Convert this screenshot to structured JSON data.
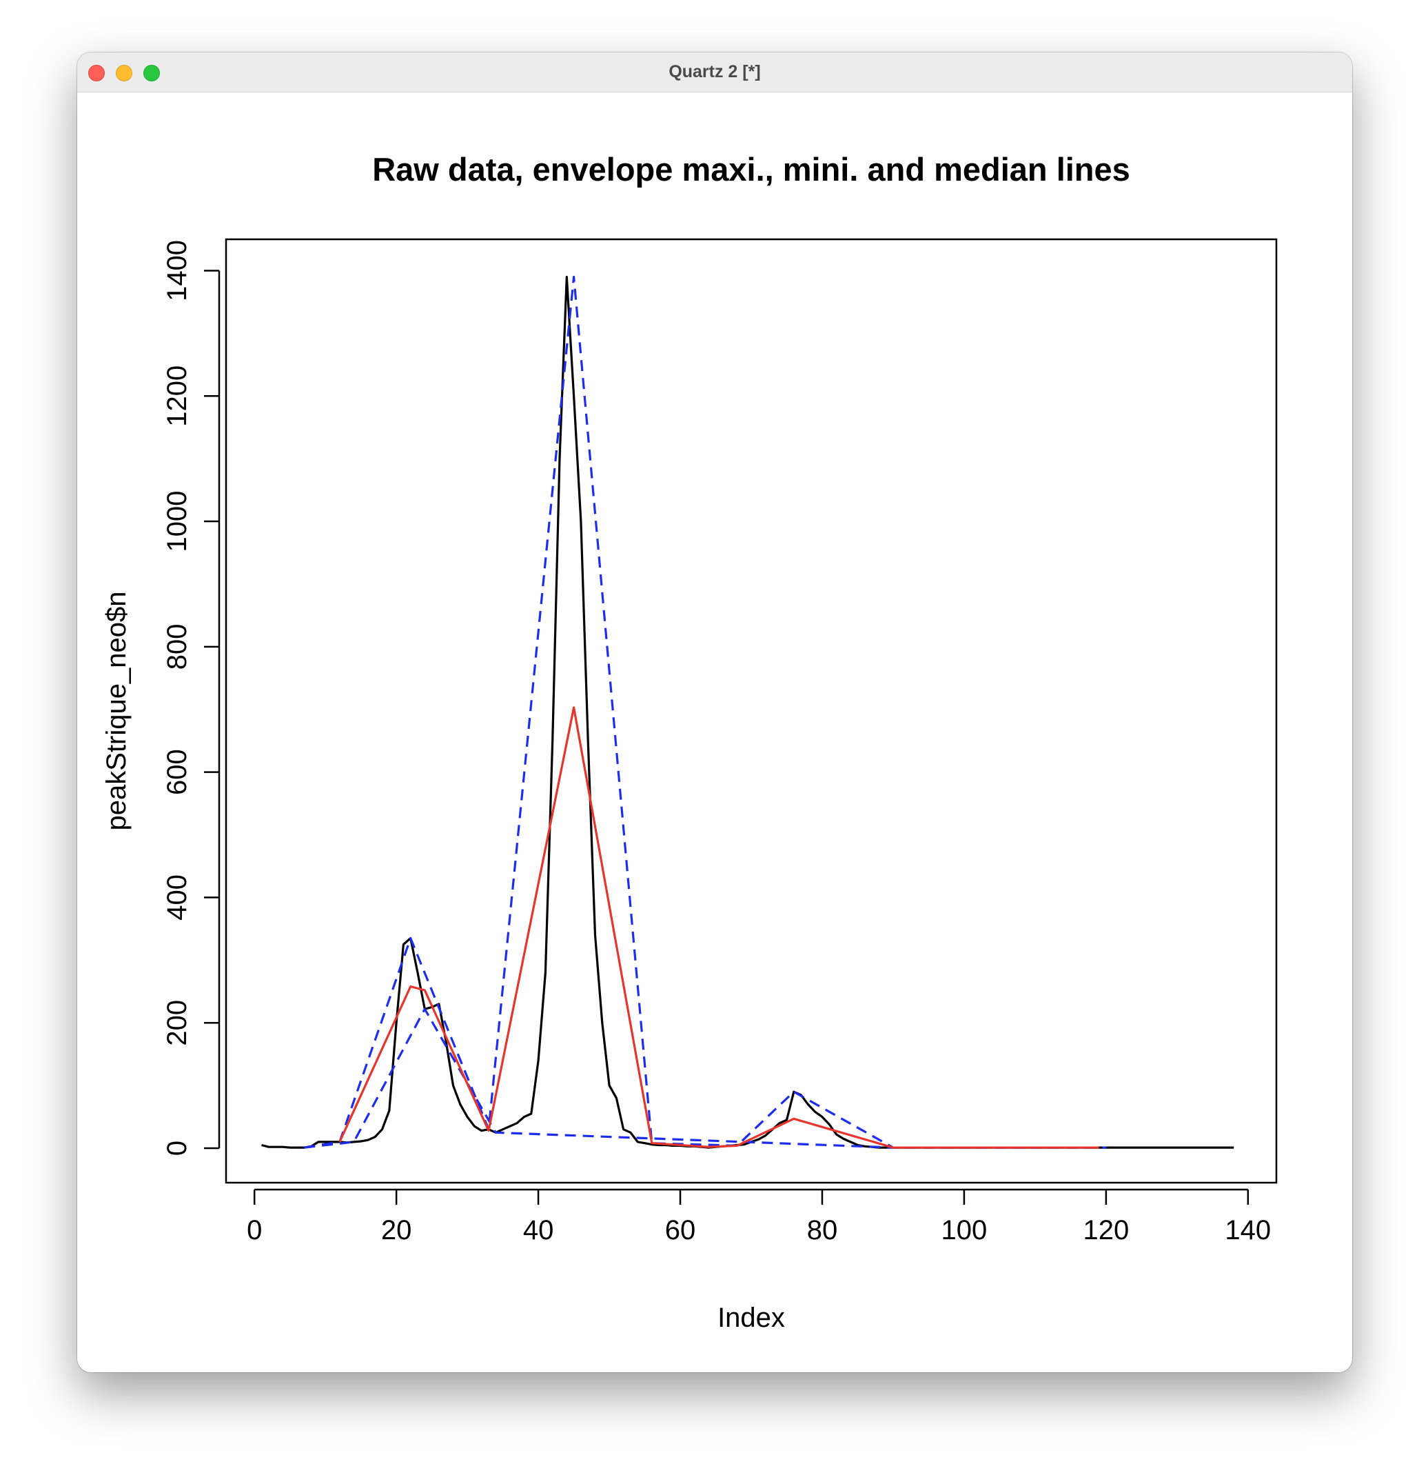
{
  "window": {
    "title": "Quartz 2 [*]",
    "controls": [
      "close",
      "minimize",
      "zoom"
    ]
  },
  "chart_data": {
    "type": "line",
    "title": "Raw data, envelope maxi., mini. and median lines",
    "xlabel": "Index",
    "ylabel": "peakStrique_neo$n",
    "xlim": [
      -4,
      144
    ],
    "ylim": [
      -55,
      1450
    ],
    "xticks": [
      0,
      20,
      40,
      60,
      80,
      100,
      120,
      140
    ],
    "yticks": [
      0,
      200,
      400,
      600,
      800,
      1000,
      1200,
      1400
    ],
    "grid": false,
    "legend": "none",
    "series": [
      {
        "style": "solid",
        "color": "#000000",
        "x": [
          1,
          2,
          3,
          4,
          5,
          6,
          7,
          8,
          9,
          10,
          11,
          12,
          13,
          14,
          15,
          16,
          17,
          18,
          19,
          20,
          21,
          22,
          23,
          24,
          25,
          26,
          27,
          28,
          29,
          30,
          31,
          32,
          33,
          34,
          35,
          36,
          37,
          38,
          39,
          40,
          41,
          42,
          43,
          44,
          45,
          46,
          47,
          48,
          49,
          50,
          51,
          52,
          53,
          54,
          55,
          56,
          57,
          58,
          59,
          60,
          61,
          62,
          63,
          64,
          65,
          66,
          67,
          68,
          69,
          70,
          71,
          72,
          73,
          74,
          75,
          76,
          77,
          78,
          79,
          80,
          81,
          82,
          83,
          84,
          85,
          86,
          87,
          88,
          89,
          90,
          91,
          92,
          93,
          94,
          95,
          96,
          97,
          98,
          99,
          100,
          101,
          102,
          103,
          104,
          105,
          106,
          107,
          108,
          109,
          110,
          111,
          112,
          113,
          114,
          115,
          116,
          117,
          118,
          119,
          120,
          121,
          122,
          123,
          124,
          125,
          126,
          127,
          128,
          129,
          130,
          131,
          132,
          133,
          134,
          135,
          136,
          137,
          138
        ],
        "y": [
          5,
          2,
          2,
          2,
          1,
          1,
          1,
          3,
          10,
          10,
          10,
          10,
          9,
          10,
          11,
          13,
          18,
          30,
          60,
          200,
          325,
          335,
          280,
          222,
          225,
          230,
          170,
          100,
          70,
          50,
          35,
          28,
          30,
          25,
          30,
          35,
          40,
          50,
          55,
          140,
          280,
          650,
          1100,
          1390,
          1200,
          1000,
          650,
          340,
          200,
          100,
          80,
          30,
          25,
          10,
          8,
          6,
          5,
          5,
          4,
          4,
          3,
          3,
          2,
          1,
          2,
          3,
          4,
          5,
          6,
          10,
          14,
          20,
          30,
          40,
          45,
          90,
          85,
          70,
          58,
          50,
          38,
          22,
          15,
          10,
          5,
          3,
          2,
          1,
          1,
          1,
          1,
          1,
          1,
          1,
          1,
          1,
          1,
          1,
          1,
          1,
          1,
          1,
          1,
          1,
          1,
          1,
          1,
          1,
          1,
          1,
          1,
          1,
          1,
          1,
          1,
          1,
          1,
          1,
          1,
          1,
          1,
          1,
          1,
          1,
          1,
          1,
          1,
          1,
          1,
          1,
          1,
          1,
          1,
          1,
          1,
          1,
          1,
          1
        ]
      },
      {
        "style": "dashed",
        "color": "#1c2cf0",
        "x": [
          7,
          12,
          22,
          33,
          45,
          56,
          68,
          76,
          90,
          104,
          120
        ],
        "y": [
          1,
          10,
          335,
          30,
          1390,
          8,
          4,
          90,
          1,
          1,
          1
        ]
      },
      {
        "style": "dashed",
        "color": "#1c2cf0",
        "x": [
          7,
          14,
          24,
          34,
          90,
          119
        ],
        "y": [
          1,
          10,
          222,
          25,
          1,
          1
        ]
      },
      {
        "style": "solid",
        "color": "#e8352c",
        "x": [
          12,
          22,
          24,
          33,
          45,
          56,
          64,
          68,
          76,
          90,
          119
        ],
        "y": [
          10,
          258,
          252,
          28,
          703,
          8,
          2,
          4,
          47,
          1,
          1
        ]
      }
    ]
  }
}
